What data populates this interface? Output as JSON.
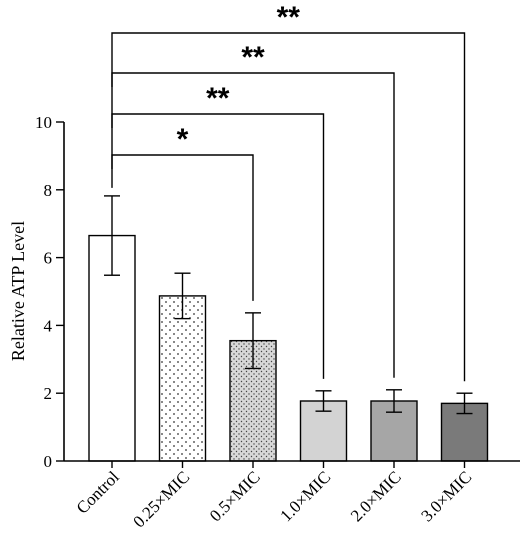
{
  "chart_data": {
    "type": "bar",
    "ylabel": "Relative ATP Level",
    "xlabel": "",
    "title": "",
    "ylim": [
      0,
      10
    ],
    "yticks": [
      "0",
      "2",
      "4",
      "6",
      "8",
      "10"
    ],
    "categories": [
      "Control",
      "0.25×MIC",
      "0.5×MIC",
      "1.0×MIC",
      "2.0×MIC",
      "3.0×MIC"
    ],
    "values": [
      6.65,
      4.87,
      3.55,
      1.77,
      1.77,
      1.7
    ],
    "errors": [
      1.17,
      0.67,
      0.82,
      0.3,
      0.33,
      0.3
    ],
    "bar_fills": [
      "#ffffff",
      "#ffffff",
      "#dcdcdc",
      "#d3d3d3",
      "#a6a6a6",
      "#7a7a7a"
    ],
    "bar_patterns": [
      "none",
      "dots-sparse",
      "dots-dense",
      "none",
      "none",
      "none"
    ],
    "significance": [
      {
        "from": "Control",
        "to": "0.5×MIC",
        "label": "*"
      },
      {
        "from": "Control",
        "to": "1.0×MIC",
        "label": "**"
      },
      {
        "from": "Control",
        "to": "2.0×MIC",
        "label": "**"
      },
      {
        "from": "Control",
        "to": "3.0×MIC",
        "label": "**"
      }
    ],
    "grid": false
  }
}
